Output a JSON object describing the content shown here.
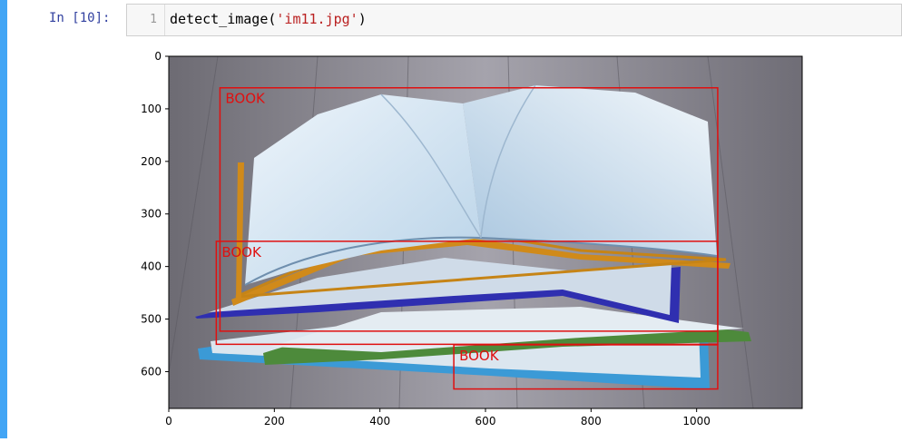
{
  "notebook": {
    "prompt": "In [10]:",
    "cell": {
      "line_number": "1",
      "code": {
        "func": "detect_image(",
        "arg": "'im11.jpg'",
        "close": ")"
      }
    }
  },
  "chart_data": {
    "type": "image",
    "xlim": [
      0,
      1200
    ],
    "ylim": [
      670,
      0
    ],
    "x_ticks": [
      0,
      200,
      400,
      600,
      800,
      1000
    ],
    "y_ticks": [
      0,
      100,
      200,
      300,
      400,
      500,
      600
    ],
    "box_color": "#e01010",
    "detections": [
      {
        "label": "BOOK",
        "x0": 97,
        "y0": 60,
        "x1": 1040,
        "y1": 523
      },
      {
        "label": "BOOK",
        "x0": 90,
        "y0": 352,
        "x1": 1040,
        "y1": 548
      },
      {
        "label": "BOOK",
        "x0": 540,
        "y0": 549,
        "x1": 1040,
        "y1": 633
      }
    ]
  }
}
